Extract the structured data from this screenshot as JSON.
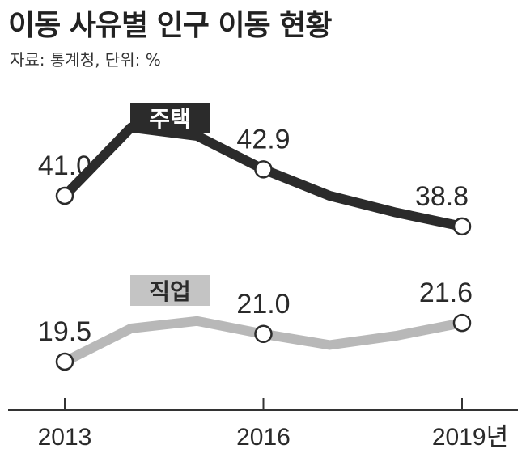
{
  "title": "이동 사유별 인구 이동 현황",
  "subtitle": "자료: 통계청, 단위: %",
  "chart_data": {
    "type": "line",
    "x": [
      2013,
      2014,
      2015,
      2016,
      2017,
      2018,
      2019
    ],
    "x_tick_labels": [
      "2013",
      "2016",
      "2019년"
    ],
    "series": [
      {
        "name": "주택",
        "values": [
          41.0,
          45.9,
          45.3,
          42.9,
          41.0,
          39.8,
          38.8
        ],
        "labeled": {
          "0": "41.0",
          "3": "42.9",
          "6": "38.8"
        },
        "color": "#2b2b2b"
      },
      {
        "name": "직업",
        "values": [
          19.5,
          21.3,
          21.7,
          21.0,
          20.4,
          20.9,
          21.6
        ],
        "labeled": {
          "0": "19.5",
          "3": "21.0",
          "6": "21.6"
        },
        "color": "#b8b8b8"
      }
    ],
    "grid": false
  }
}
